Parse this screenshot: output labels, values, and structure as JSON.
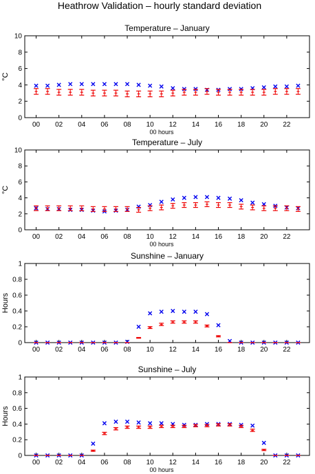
{
  "figure": {
    "title": "Heathrow Validation – hourly standard deviation"
  },
  "colors": {
    "model": "#0000ee",
    "obs": "#ee0000",
    "axis": "#000000"
  },
  "chart_data": [
    {
      "type": "scatter",
      "title": "Temperature – January",
      "xlabel": "00 hours",
      "ylabel": "°C",
      "xlim": [
        -1,
        24
      ],
      "ylim": [
        0,
        10
      ],
      "xticks": [
        "00",
        "02",
        "04",
        "06",
        "08",
        "10",
        "12",
        "14",
        "16",
        "18",
        "20",
        "22"
      ],
      "yticks": [
        "0",
        "2",
        "4",
        "6",
        "8",
        "10"
      ],
      "x": [
        0,
        1,
        2,
        3,
        4,
        5,
        6,
        7,
        8,
        9,
        10,
        11,
        12,
        13,
        14,
        15,
        16,
        17,
        18,
        19,
        20,
        21,
        22,
        23
      ],
      "series": [
        {
          "marker": "x",
          "values": [
            3.9,
            3.9,
            4.0,
            4.1,
            4.1,
            4.1,
            4.1,
            4.1,
            4.1,
            4.0,
            3.9,
            3.8,
            3.6,
            3.5,
            3.5,
            3.4,
            3.4,
            3.5,
            3.5,
            3.6,
            3.7,
            3.8,
            3.8,
            3.9
          ]
        },
        {
          "marker": "errorbar",
          "values": [
            3.2,
            3.2,
            3.1,
            3.1,
            3.1,
            3.0,
            3.0,
            3.0,
            2.9,
            2.9,
            2.9,
            2.9,
            3.0,
            3.1,
            3.1,
            3.2,
            3.1,
            3.1,
            3.1,
            3.1,
            3.1,
            3.2,
            3.2,
            3.2
          ],
          "err": [
            0.35,
            0.35,
            0.35,
            0.35,
            0.35,
            0.35,
            0.35,
            0.35,
            0.35,
            0.35,
            0.35,
            0.35,
            0.35,
            0.35,
            0.35,
            0.35,
            0.35,
            0.35,
            0.35,
            0.35,
            0.35,
            0.35,
            0.35,
            0.35
          ]
        }
      ]
    },
    {
      "type": "scatter",
      "title": "Temperature – July",
      "xlabel": "00 hours",
      "ylabel": "°C",
      "xlim": [
        -1,
        24
      ],
      "ylim": [
        0,
        10
      ],
      "xticks": [
        "00",
        "02",
        "04",
        "06",
        "08",
        "10",
        "12",
        "14",
        "16",
        "18",
        "20",
        "22"
      ],
      "yticks": [
        "0",
        "2",
        "4",
        "6",
        "8",
        "10"
      ],
      "x": [
        0,
        1,
        2,
        3,
        4,
        5,
        6,
        7,
        8,
        9,
        10,
        11,
        12,
        13,
        14,
        15,
        16,
        17,
        18,
        19,
        20,
        21,
        22,
        23
      ],
      "series": [
        {
          "marker": "x",
          "values": [
            2.7,
            2.6,
            2.6,
            2.5,
            2.5,
            2.4,
            2.3,
            2.4,
            2.5,
            2.9,
            3.1,
            3.5,
            3.8,
            4.0,
            4.1,
            4.1,
            4.0,
            3.9,
            3.7,
            3.4,
            3.2,
            3.0,
            2.8,
            2.7
          ]
        },
        {
          "marker": "errorbar",
          "values": [
            2.7,
            2.7,
            2.7,
            2.7,
            2.7,
            2.6,
            2.6,
            2.6,
            2.6,
            2.5,
            2.7,
            2.8,
            3.0,
            3.1,
            3.1,
            3.2,
            3.1,
            3.1,
            2.9,
            2.8,
            2.7,
            2.7,
            2.7,
            2.6
          ],
          "err": [
            0.3,
            0.3,
            0.3,
            0.3,
            0.3,
            0.3,
            0.3,
            0.3,
            0.3,
            0.3,
            0.3,
            0.3,
            0.3,
            0.3,
            0.3,
            0.3,
            0.3,
            0.3,
            0.3,
            0.3,
            0.3,
            0.3,
            0.3,
            0.3
          ]
        }
      ]
    },
    {
      "type": "scatter",
      "title": "Sunshine – January",
      "xlabel": "",
      "ylabel": "Hours",
      "xlim": [
        -1,
        24
      ],
      "ylim": [
        0,
        1
      ],
      "xticks": [
        "00",
        "02",
        "04",
        "06",
        "08",
        "10",
        "12",
        "14",
        "16",
        "18",
        "20",
        "22"
      ],
      "yticks": [
        "0",
        "0.2",
        "0.4",
        "0.6",
        "0.8",
        "1"
      ],
      "x": [
        0,
        1,
        2,
        3,
        4,
        5,
        6,
        7,
        8,
        9,
        10,
        11,
        12,
        13,
        14,
        15,
        16,
        17,
        18,
        19,
        20,
        21,
        22,
        23
      ],
      "series": [
        {
          "marker": "x",
          "values": [
            0,
            0,
            0,
            0,
            0,
            0,
            0,
            0,
            0.01,
            0.2,
            0.37,
            0.39,
            0.4,
            0.39,
            0.39,
            0.36,
            0.22,
            0.02,
            0,
            0,
            0,
            0,
            0,
            0
          ]
        },
        {
          "marker": "errorbar",
          "values": [
            0,
            0,
            0,
            0,
            0,
            0,
            0,
            0,
            0,
            0.06,
            0.19,
            0.23,
            0.26,
            0.26,
            0.26,
            0.21,
            0.08,
            0,
            0,
            0,
            0,
            0,
            0,
            0
          ],
          "err": [
            0,
            0,
            0,
            0,
            0,
            0,
            0,
            0,
            0,
            0.005,
            0.012,
            0.015,
            0.015,
            0.015,
            0.015,
            0.012,
            0.008,
            0,
            0,
            0,
            0,
            0,
            0,
            0
          ]
        }
      ]
    },
    {
      "type": "scatter",
      "title": "Sunshine – July",
      "xlabel": "00 hours",
      "ylabel": "Hours",
      "xlim": [
        -1,
        24
      ],
      "ylim": [
        0,
        1
      ],
      "xticks": [
        "00",
        "02",
        "04",
        "06",
        "08",
        "10",
        "12",
        "14",
        "16",
        "18",
        "20",
        "22"
      ],
      "yticks": [
        "0",
        "0.2",
        "0.4",
        "0.6",
        "0.8",
        "1"
      ],
      "x": [
        0,
        1,
        2,
        3,
        4,
        5,
        6,
        7,
        8,
        9,
        10,
        11,
        12,
        13,
        14,
        15,
        16,
        17,
        18,
        19,
        20,
        21,
        22,
        23
      ],
      "series": [
        {
          "marker": "x",
          "values": [
            0,
            0,
            0,
            0,
            0,
            0.15,
            0.41,
            0.43,
            0.43,
            0.42,
            0.41,
            0.41,
            0.4,
            0.39,
            0.39,
            0.4,
            0.4,
            0.4,
            0.39,
            0.38,
            0.16,
            0,
            0,
            0
          ]
        },
        {
          "marker": "errorbar",
          "values": [
            0,
            0,
            0,
            0,
            0,
            0.06,
            0.28,
            0.34,
            0.36,
            0.36,
            0.36,
            0.37,
            0.37,
            0.37,
            0.38,
            0.38,
            0.39,
            0.39,
            0.37,
            0.32,
            0.07,
            0,
            0,
            0
          ],
          "err": [
            0,
            0,
            0,
            0,
            0,
            0.008,
            0.015,
            0.015,
            0.015,
            0.015,
            0.015,
            0.015,
            0.015,
            0.015,
            0.015,
            0.015,
            0.015,
            0.015,
            0.015,
            0.015,
            0.008,
            0,
            0,
            0
          ]
        }
      ]
    }
  ]
}
